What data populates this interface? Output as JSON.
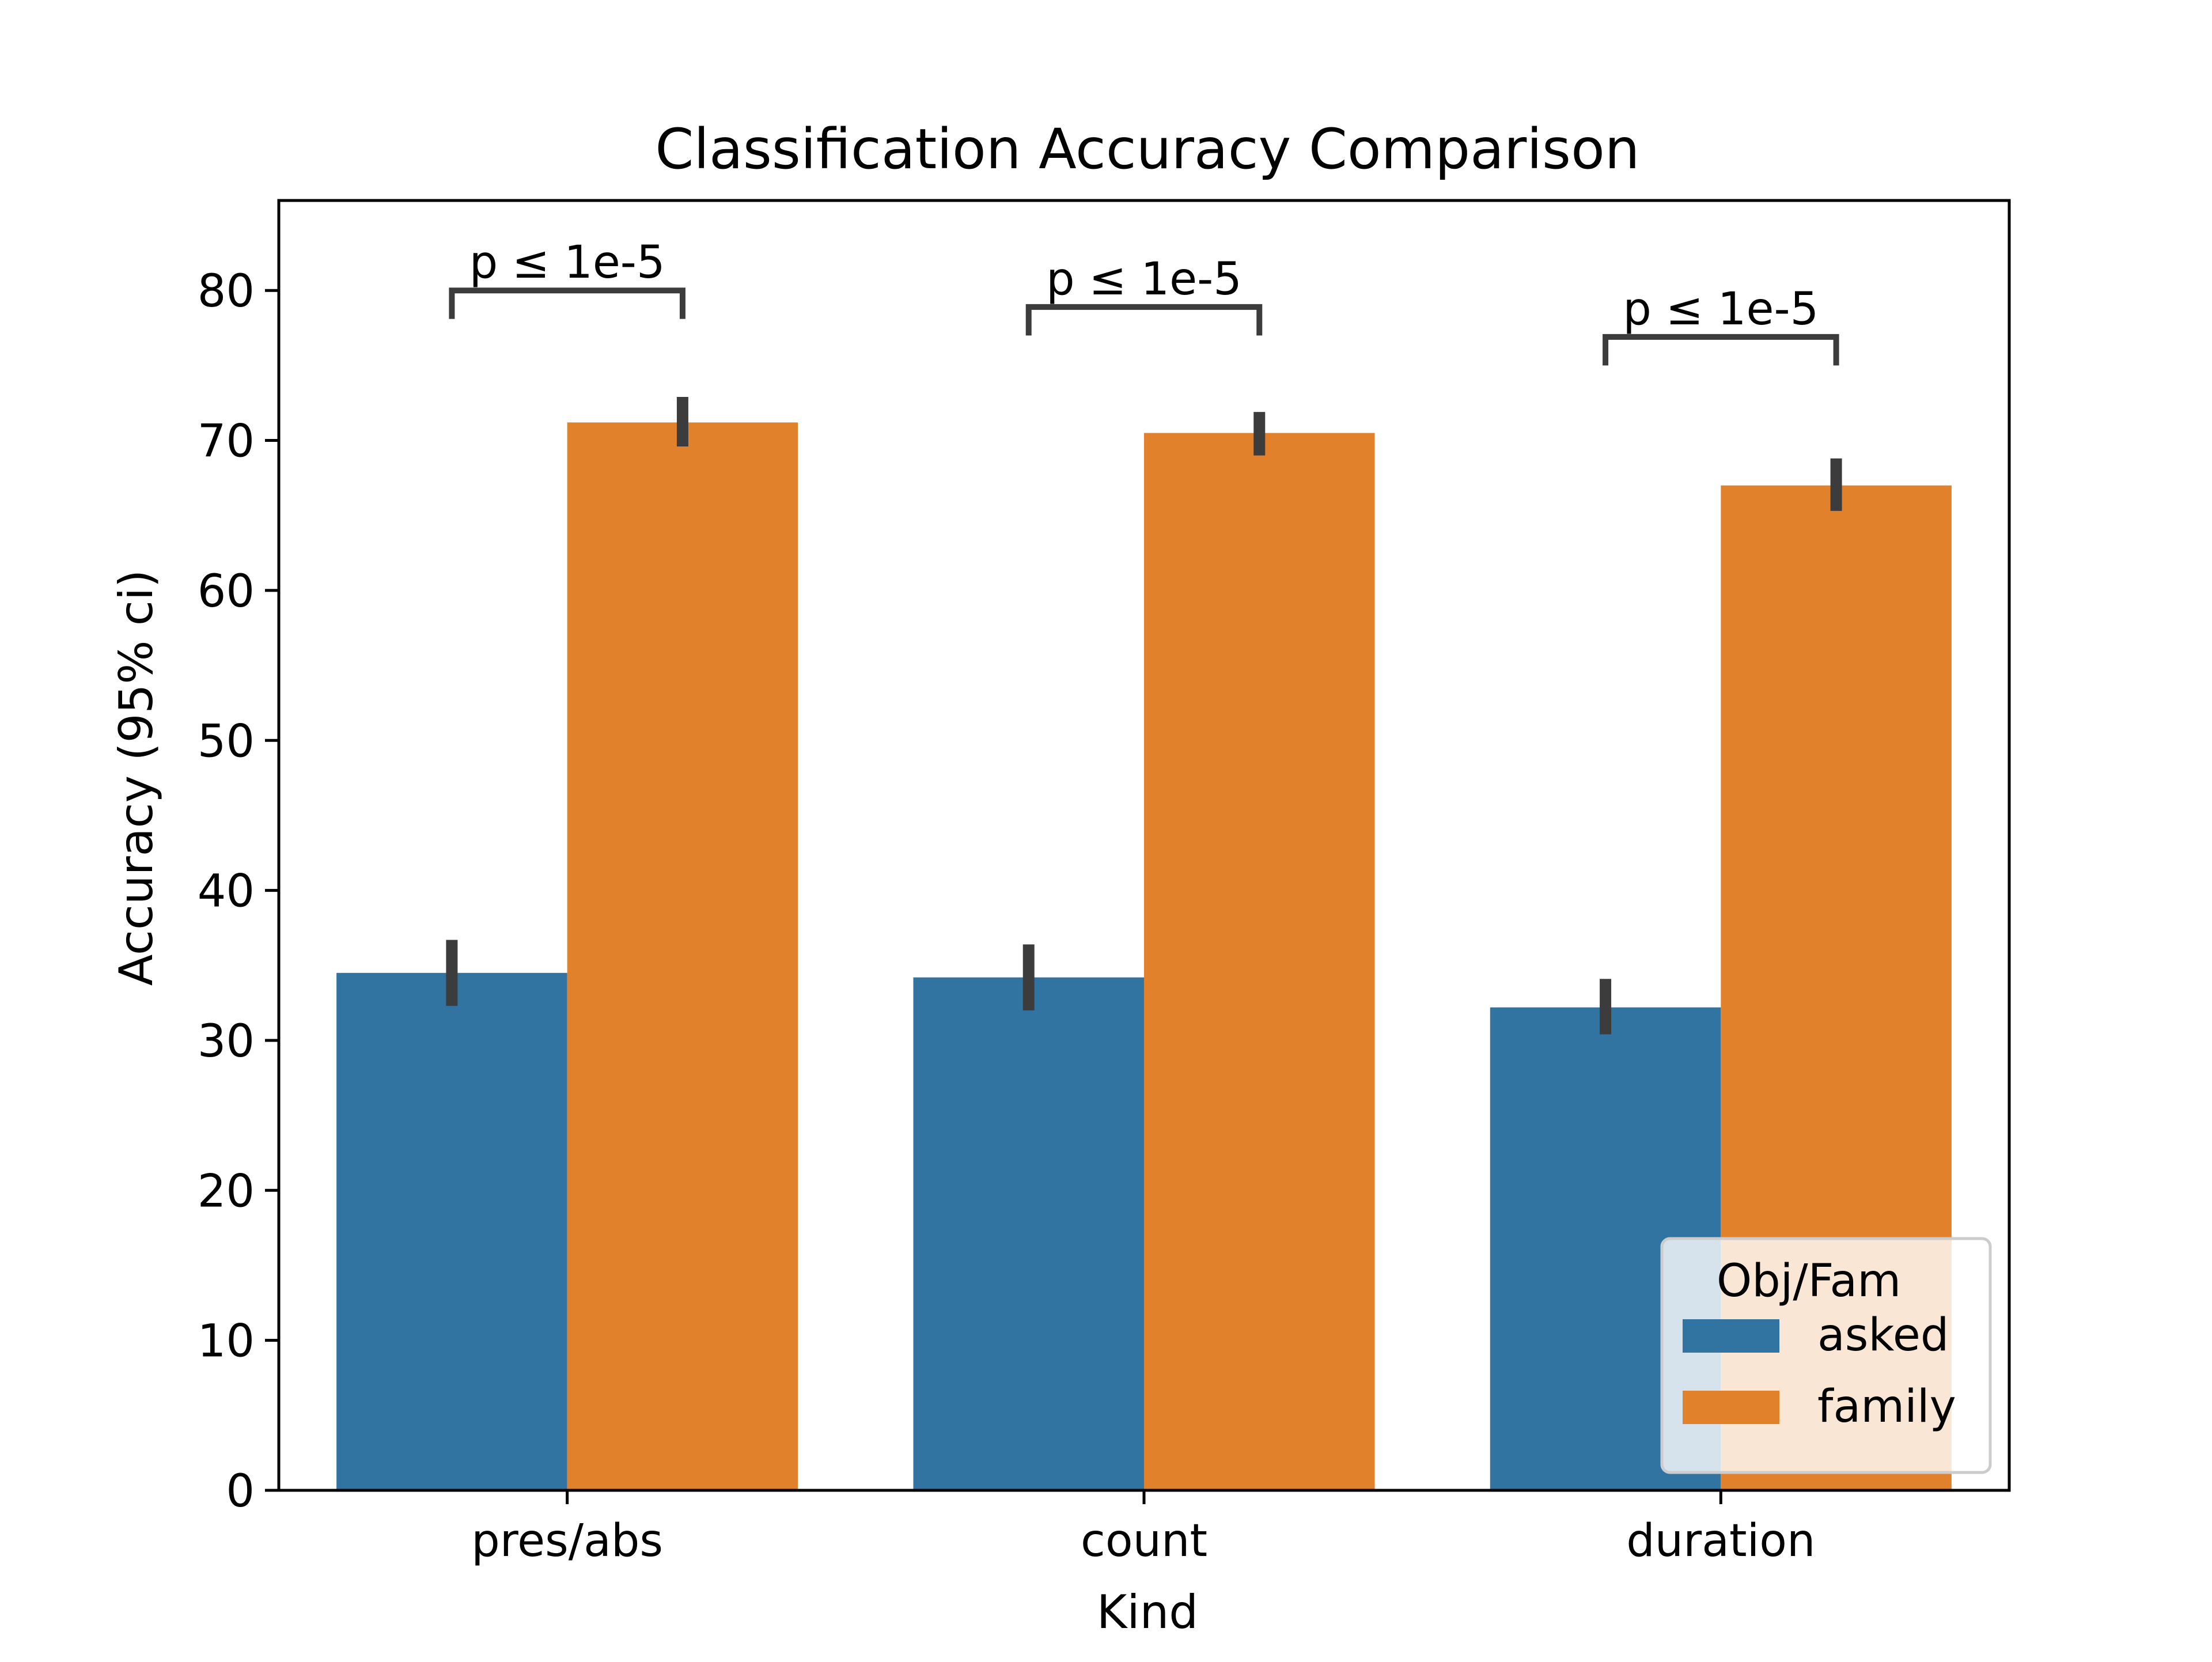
{
  "chart_data": {
    "type": "bar",
    "title": "Classification Accuracy Comparison",
    "xlabel": "Kind",
    "ylabel": "Accuracy (95% ci)",
    "categories": [
      "pres/abs",
      "count",
      "duration"
    ],
    "ylim": [
      0,
      86
    ],
    "yticks": [
      0,
      10,
      20,
      30,
      40,
      50,
      60,
      70,
      80
    ],
    "grid": false,
    "series": [
      {
        "name": "asked",
        "color": "#3274a1",
        "values": [
          34.5,
          34.2,
          32.2
        ],
        "ci_low": [
          32.3,
          32.0,
          30.4
        ],
        "ci_high": [
          36.7,
          36.4,
          34.1
        ]
      },
      {
        "name": "family",
        "color": "#e1812c",
        "values": [
          71.2,
          70.5,
          67.0
        ],
        "ci_low": [
          69.6,
          69.0,
          65.3
        ],
        "ci_high": [
          72.9,
          71.9,
          68.8
        ]
      }
    ],
    "annotations": [
      {
        "category": "pres/abs",
        "text": "p ≤ 1e-5",
        "bracket_y": 80.0,
        "tick_drop": 1.9
      },
      {
        "category": "count",
        "text": "p ≤ 1e-5",
        "bracket_y": 78.9,
        "tick_drop": 1.9
      },
      {
        "category": "duration",
        "text": "p ≤ 1e-5",
        "bracket_y": 76.9,
        "tick_drop": 1.9
      }
    ],
    "legend": {
      "title": "Obj/Fam",
      "placement": "lower-right"
    },
    "errorbar_color": "#3c3c3c"
  }
}
